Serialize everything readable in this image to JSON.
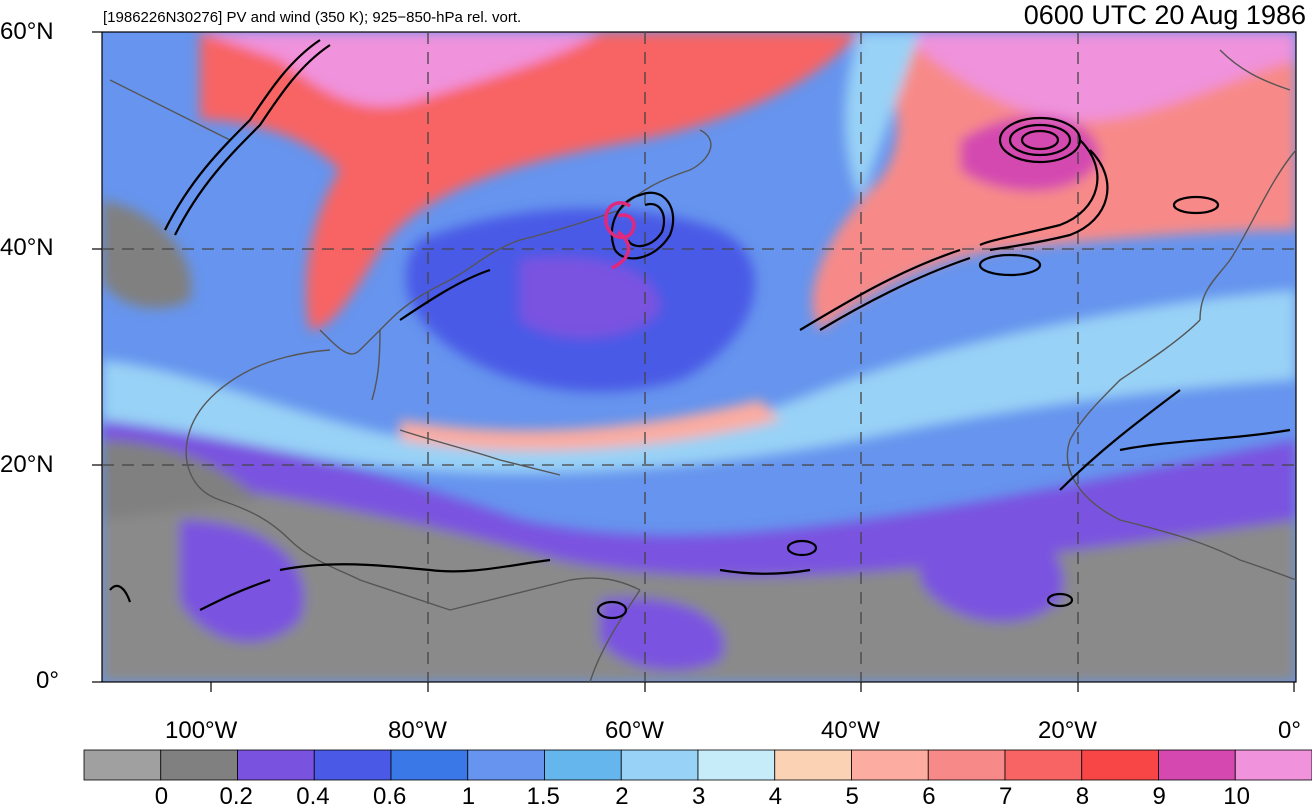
{
  "header": {
    "subtitle": "[1986226N30276] PV and wind (350 K); 925−850-hPa rel. vort.",
    "time_label": "0600 UTC 20 Aug 1986"
  },
  "axes": {
    "lat_labels": [
      "60°N",
      "40°N",
      "20°N",
      "0°"
    ],
    "lon_labels": [
      "100°W",
      "80°W",
      "60°W",
      "40°W",
      "20°W",
      "0°"
    ]
  },
  "storm_symbol": {
    "color": "#e0287d",
    "lon": -62,
    "lat": 42
  },
  "colorbar": {
    "colors": [
      "#a0a0a0",
      "#808080",
      "#7a52e0",
      "#4a5ae6",
      "#3a78e8",
      "#6694ee",
      "#64b6ec",
      "#98d2f6",
      "#c6ecfa",
      "#fcd2b4",
      "#fcaca0",
      "#f78a88",
      "#f86464",
      "#f84646",
      "#d448b0",
      "#f092dc"
    ],
    "labels": [
      "0",
      "0.2",
      "0.4",
      "0.6",
      "1",
      "1.5",
      "2",
      "3",
      "4",
      "5",
      "6",
      "7",
      "8",
      "9",
      "10"
    ]
  },
  "map_extent": {
    "lon_min": -110,
    "lon_max": 0,
    "lat_min": 0,
    "lat_max": 60
  }
}
